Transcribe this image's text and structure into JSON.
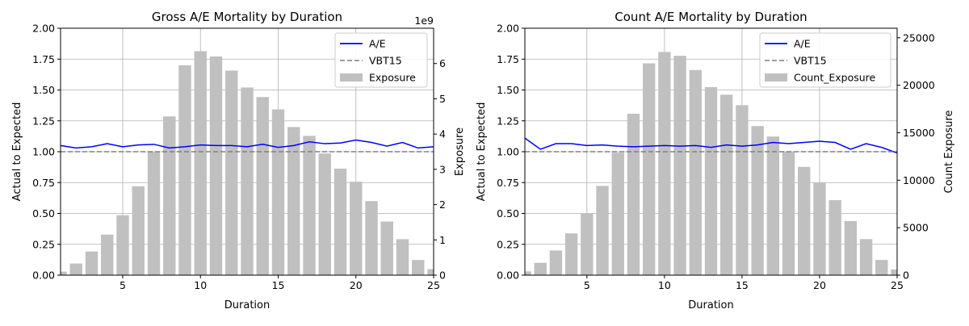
{
  "chart_data": [
    {
      "type": "bar",
      "title": "Gross A/E Mortality by Duration",
      "xlabel": "Duration",
      "ylabel": "Actual to Expected",
      "y2label": "Exposure",
      "y2_offset_text": "1e9",
      "xlim": [
        1,
        25
      ],
      "ylim": [
        0,
        2.0
      ],
      "y2lim": [
        0,
        7.0
      ],
      "x_ticks": [
        "5",
        "10",
        "15",
        "20",
        "25"
      ],
      "y_ticks": [
        "0.00",
        "0.25",
        "0.50",
        "0.75",
        "1.00",
        "1.25",
        "1.50",
        "1.75",
        "2.00"
      ],
      "y2_ticks": [
        "0",
        "1",
        "2",
        "3",
        "4",
        "5",
        "6"
      ],
      "grid": true,
      "legend_position": "upper right",
      "legend": [
        "A/E",
        "VBT15",
        "Exposure"
      ],
      "x": [
        1,
        2,
        3,
        4,
        5,
        6,
        7,
        8,
        9,
        10,
        11,
        12,
        13,
        14,
        15,
        16,
        17,
        18,
        19,
        20,
        21,
        22,
        23,
        24,
        25
      ],
      "series": [
        {
          "name": "A/E",
          "kind": "line",
          "axis": "left",
          "color": "#0000ff",
          "values": [
            1.05,
            1.03,
            1.04,
            1.065,
            1.04,
            1.055,
            1.06,
            1.03,
            1.04,
            1.055,
            1.05,
            1.05,
            1.04,
            1.06,
            1.035,
            1.05,
            1.08,
            1.065,
            1.07,
            1.095,
            1.075,
            1.045,
            1.075,
            1.03,
            1.04
          ]
        },
        {
          "name": "VBT15",
          "kind": "dashed-line",
          "axis": "left",
          "color": "#808080",
          "values": [
            1,
            1,
            1,
            1,
            1,
            1,
            1,
            1,
            1,
            1,
            1,
            1,
            1,
            1,
            1,
            1,
            1,
            1,
            1,
            1,
            1,
            1,
            1,
            1,
            1
          ]
        },
        {
          "name": "Exposure",
          "kind": "bar",
          "axis": "right",
          "color": "#c0c0c0",
          "unit_scale": 1000000000.0,
          "values": [
            0.1,
            0.33,
            0.67,
            1.15,
            1.7,
            2.52,
            3.5,
            4.5,
            5.95,
            6.35,
            6.2,
            5.8,
            5.32,
            5.05,
            4.7,
            4.2,
            3.95,
            3.45,
            3.02,
            2.65,
            2.1,
            1.52,
            1.02,
            0.43,
            0.17
          ]
        }
      ]
    },
    {
      "type": "bar",
      "title": "Count A/E Mortality by Duration",
      "xlabel": "Duration",
      "ylabel": "Actual to Expected",
      "y2label": "Count Exposure",
      "xlim": [
        1,
        25
      ],
      "ylim": [
        0,
        2.0
      ],
      "y2lim": [
        0,
        26000
      ],
      "x_ticks": [
        "5",
        "10",
        "15",
        "20",
        "25"
      ],
      "y_ticks": [
        "0.00",
        "0.25",
        "0.50",
        "0.75",
        "1.00",
        "1.25",
        "1.50",
        "1.75",
        "2.00"
      ],
      "y2_ticks": [
        "0",
        "5000",
        "10000",
        "15000",
        "20000",
        "25000"
      ],
      "grid": true,
      "legend_position": "upper right",
      "legend": [
        "A/E",
        "VBT15",
        "Count_Exposure"
      ],
      "x": [
        1,
        2,
        3,
        4,
        5,
        6,
        7,
        8,
        9,
        10,
        11,
        12,
        13,
        14,
        15,
        16,
        17,
        18,
        19,
        20,
        21,
        22,
        23,
        24,
        25
      ],
      "series": [
        {
          "name": "A/E",
          "kind": "line",
          "axis": "left",
          "color": "#0000ff",
          "values": [
            1.11,
            1.02,
            1.065,
            1.065,
            1.05,
            1.055,
            1.045,
            1.04,
            1.045,
            1.05,
            1.045,
            1.05,
            1.035,
            1.055,
            1.045,
            1.055,
            1.075,
            1.065,
            1.075,
            1.085,
            1.075,
            1.02,
            1.065,
            1.035,
            0.99
          ]
        },
        {
          "name": "VBT15",
          "kind": "dashed-line",
          "axis": "left",
          "color": "#808080",
          "values": [
            1,
            1,
            1,
            1,
            1,
            1,
            1,
            1,
            1,
            1,
            1,
            1,
            1,
            1,
            1,
            1,
            1,
            1,
            1,
            1,
            1,
            1,
            1,
            1,
            1
          ]
        },
        {
          "name": "Count_Exposure",
          "kind": "bar",
          "axis": "right",
          "color": "#c0c0c0",
          "values": [
            400,
            1300,
            2600,
            4400,
            6500,
            9400,
            12900,
            17000,
            22300,
            23500,
            23100,
            21600,
            19800,
            19000,
            17900,
            15700,
            14600,
            13000,
            11400,
            9700,
            7900,
            5700,
            3800,
            1600,
            600
          ]
        }
      ]
    }
  ]
}
